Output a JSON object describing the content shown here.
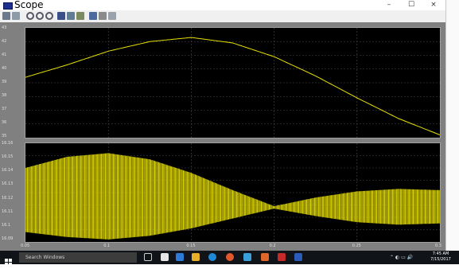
{
  "window": {
    "title": "Scope",
    "controls": {
      "minimize": "–",
      "maximize": "☐",
      "close": "×"
    }
  },
  "toolbar": {
    "buttons": [
      "print-icon",
      "params-icon",
      "zoom-icon",
      "zoom-x-icon",
      "zoom-y-icon",
      "autoscale-icon",
      "save-axes-icon",
      "restore-axes-icon",
      "floating-icon",
      "lock-icon",
      "select-signals-icon"
    ]
  },
  "plot1": {
    "y_ticks": [
      "43",
      "42",
      "41",
      "40",
      "39",
      "38",
      "37",
      "36",
      "35"
    ],
    "ylim": [
      35,
      43
    ]
  },
  "plot2": {
    "y_ticks": [
      "16.16",
      "16.15",
      "16.14",
      "16.13",
      "16.12",
      "16.11",
      "16.1",
      "16.09"
    ],
    "ylim": [
      16.085,
      16.165
    ]
  },
  "x_axis": {
    "ticks": [
      "0.05",
      "0.1",
      "0.15",
      "0.2",
      "0.25",
      "0.3"
    ],
    "xlim": [
      0.05,
      0.3
    ]
  },
  "chart_data": [
    {
      "type": "line",
      "series": [
        {
          "values_x": [
            0.05,
            0.075,
            0.1,
            0.125,
            0.15,
            0.175,
            0.2,
            0.225,
            0.25,
            0.275,
            0.3
          ],
          "values_y": [
            39.4,
            40.3,
            41.3,
            42.0,
            42.3,
            41.9,
            40.9,
            39.5,
            37.9,
            36.4,
            35.2
          ]
        }
      ],
      "xlim": [
        0.05,
        0.3
      ],
      "ylim": [
        35,
        43
      ]
    },
    {
      "type": "area",
      "series": [
        {
          "values_x": [
            0.05,
            0.075,
            0.1,
            0.125,
            0.15,
            0.175,
            0.2,
            0.225,
            0.25,
            0.275,
            0.3
          ],
          "upper": [
            16.145,
            16.154,
            16.157,
            16.152,
            16.141,
            16.127,
            16.114,
            16.121,
            16.126,
            16.128,
            16.127
          ],
          "lower": [
            16.093,
            16.089,
            16.087,
            16.09,
            16.096,
            16.104,
            16.112,
            16.106,
            16.101,
            16.099,
            16.1
          ]
        }
      ],
      "xlim": [
        0.05,
        0.3
      ],
      "ylim": [
        16.085,
        16.165
      ]
    }
  ],
  "taskbar": {
    "search_placeholder": "Search Windows",
    "time": "7:45 AM",
    "date": "7/15/2017"
  },
  "colors": {
    "trace": "#e8e000",
    "axes_bg": "#000000",
    "frame_bg": "#808080",
    "grid": "#4a4a4a"
  }
}
